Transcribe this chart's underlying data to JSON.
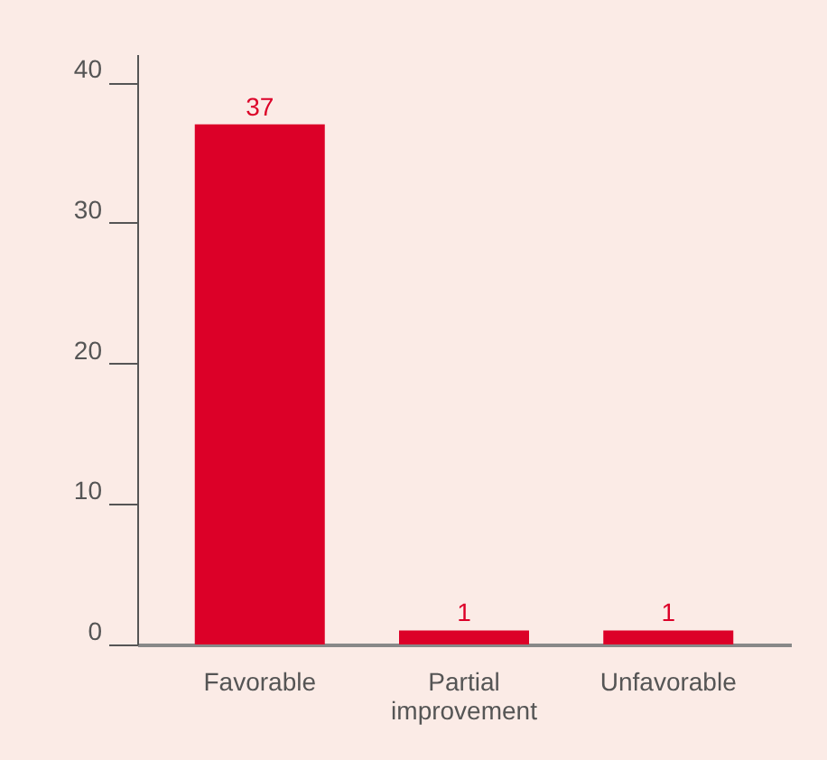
{
  "chart_data": {
    "type": "bar",
    "categories": [
      "Favorable",
      "Partial\nimprovement",
      "Unfavorable"
    ],
    "values": [
      37,
      1,
      1
    ],
    "color": "#dc0028",
    "ylim": [
      0,
      42
    ],
    "yticks": [
      0,
      10,
      20,
      30,
      40
    ],
    "data_labels": true,
    "grid": false
  }
}
